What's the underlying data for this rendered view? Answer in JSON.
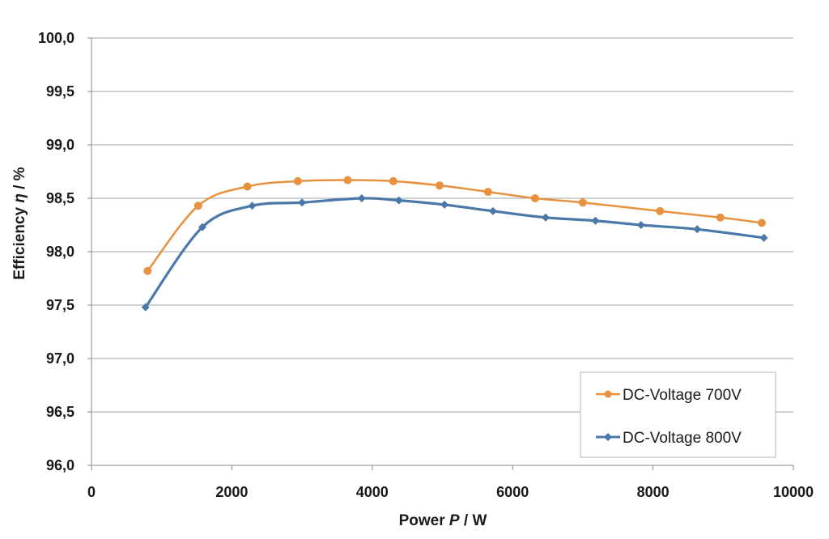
{
  "chart_data": {
    "type": "line",
    "xlabel": {
      "prefix": "Power ",
      "symbol": "P",
      "suffix": " / W"
    },
    "ylabel": {
      "prefix": "Efficiency ",
      "symbol": "η",
      "suffix": " / %"
    },
    "xlim": [
      0,
      10000
    ],
    "ylim": [
      96.0,
      100.0
    ],
    "x_ticks": [
      0,
      2000,
      4000,
      6000,
      8000,
      10000
    ],
    "x_tick_labels": [
      "0",
      "2000",
      "4000",
      "6000",
      "8000",
      "10000"
    ],
    "y_ticks": [
      96.0,
      96.5,
      97.0,
      97.5,
      98.0,
      98.5,
      99.0,
      99.5,
      100.0
    ],
    "y_tick_labels": [
      "96,0",
      "96,5",
      "97,0",
      "97,5",
      "98,0",
      "98,5",
      "99,0",
      "99,5",
      "100,0"
    ],
    "grid": "horizontal",
    "legend_position": "bottom-right",
    "series": [
      {
        "name": "DC-Voltage 700V",
        "color": "#E8913F",
        "marker": "circle",
        "x": [
          800,
          1520,
          2220,
          2940,
          3650,
          4300,
          4960,
          5650,
          6320,
          7000,
          8100,
          8960,
          9550
        ],
        "y": [
          97.82,
          98.43,
          98.61,
          98.66,
          98.67,
          98.66,
          98.62,
          98.56,
          98.5,
          98.46,
          98.38,
          98.32,
          98.27
        ]
      },
      {
        "name": "DC-Voltage 800V",
        "color": "#4A78A9",
        "marker": "diamond",
        "x": [
          770,
          1580,
          2290,
          3000,
          3850,
          4380,
          5030,
          5720,
          6470,
          7180,
          7830,
          8630,
          9580
        ],
        "y": [
          97.48,
          98.23,
          98.43,
          98.46,
          98.5,
          98.48,
          98.44,
          98.38,
          98.32,
          98.29,
          98.25,
          98.21,
          98.13
        ]
      }
    ]
  }
}
